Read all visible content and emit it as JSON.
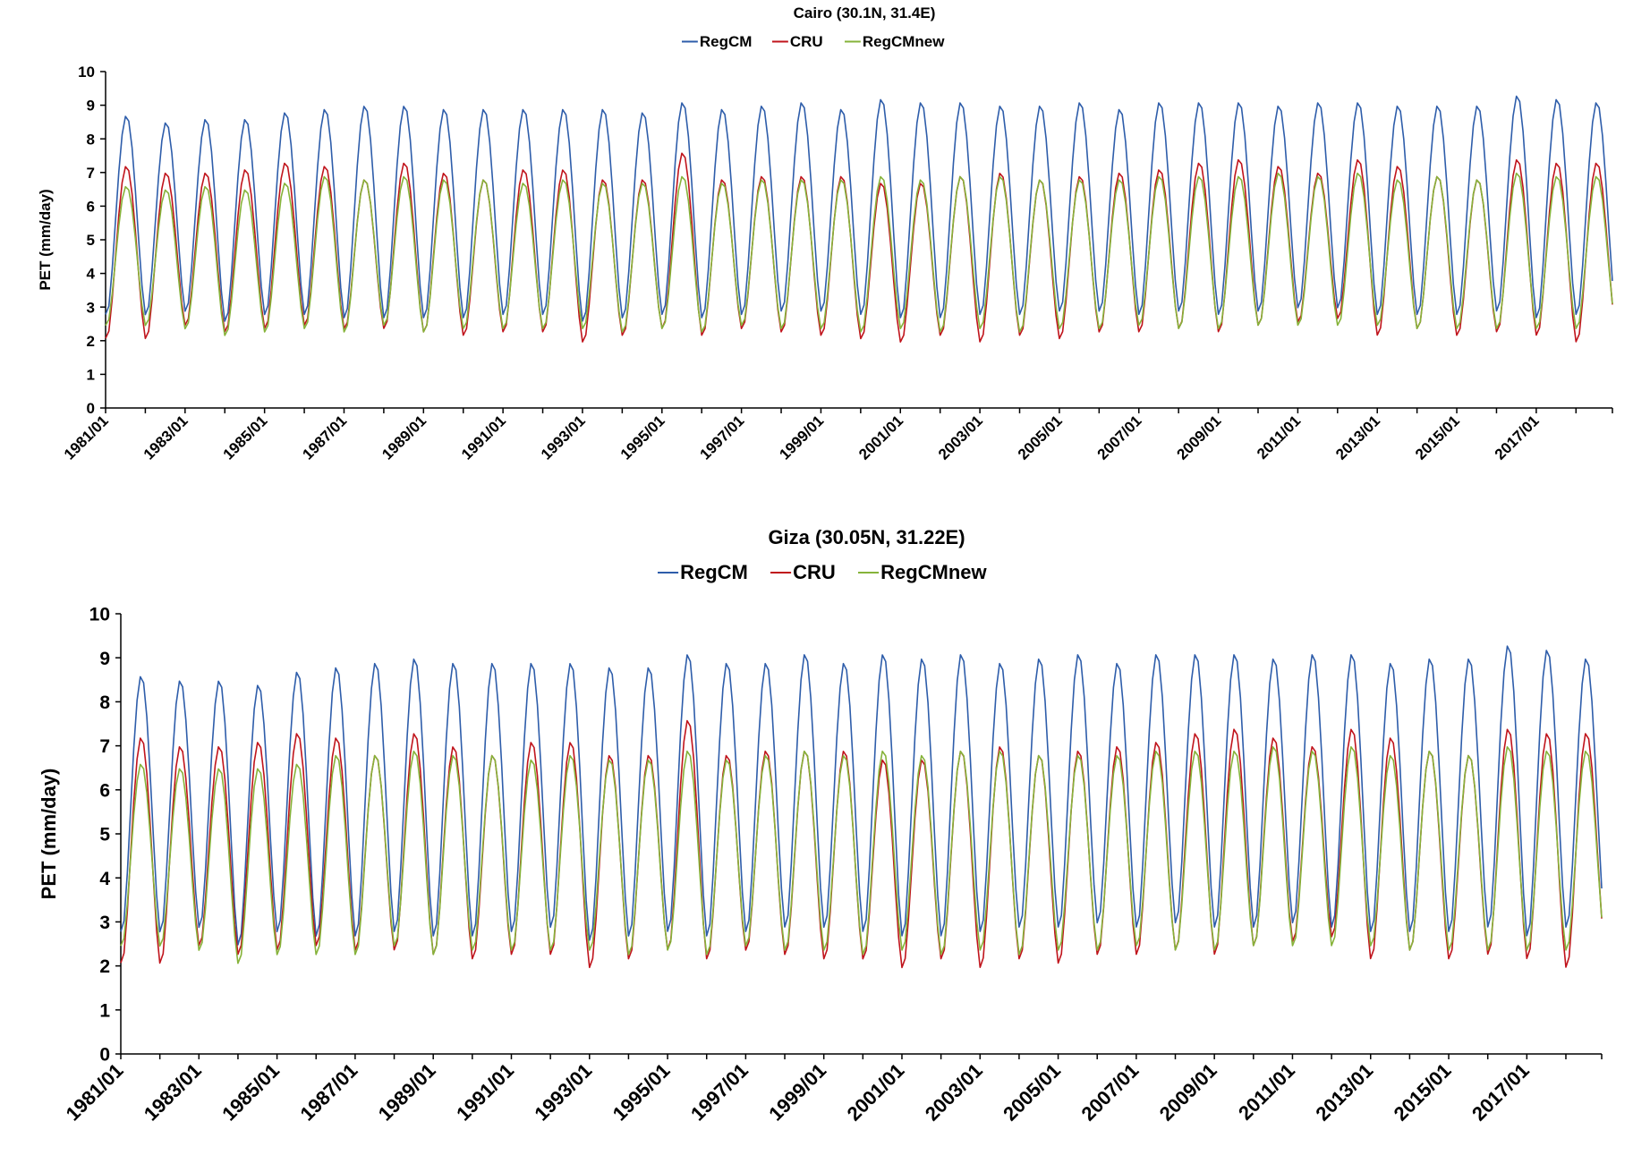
{
  "colors": {
    "RegCM": "#2E5DAA",
    "CRU": "#C0141C",
    "RegCMnew": "#86B33A",
    "axis": "#000000"
  },
  "chart_data": [
    {
      "type": "line",
      "title": "Cairo (30.1N, 31.4E)",
      "xlabel": "",
      "ylabel": "PET (mm/day)",
      "ylim": [
        0,
        10
      ],
      "yticks": [
        0,
        1,
        2,
        3,
        4,
        5,
        6,
        7,
        8,
        9,
        10
      ],
      "xrange": [
        "1981/01",
        "2018/12"
      ],
      "xtick_labels": [
        "1981/01",
        "1983/01",
        "1985/01",
        "1987/01",
        "1989/01",
        "1991/01",
        "1993/01",
        "1995/01",
        "1997/01",
        "1999/01",
        "2001/01",
        "2003/01",
        "2005/01",
        "2007/01",
        "2009/01",
        "2011/01",
        "2013/01",
        "2015/01",
        "2017/01"
      ],
      "legend_position": "top-center",
      "grid": false,
      "frequency": "monthly",
      "years": [
        1981,
        1982,
        1983,
        1984,
        1985,
        1986,
        1987,
        1988,
        1989,
        1990,
        1991,
        1992,
        1993,
        1994,
        1995,
        1996,
        1997,
        1998,
        1999,
        2000,
        2001,
        2002,
        2003,
        2004,
        2005,
        2006,
        2007,
        2008,
        2009,
        2010,
        2011,
        2012,
        2013,
        2014,
        2015,
        2016,
        2017,
        2018
      ],
      "series": [
        {
          "name": "RegCM",
          "annual_max": [
            8.7,
            8.5,
            8.6,
            8.6,
            8.8,
            8.9,
            9.0,
            9.0,
            8.9,
            8.9,
            8.9,
            8.9,
            8.9,
            8.8,
            9.1,
            8.9,
            9.0,
            9.1,
            8.9,
            9.2,
            9.1,
            9.1,
            9.0,
            9.0,
            9.1,
            8.9,
            9.1,
            9.1,
            9.1,
            9.0,
            9.1,
            9.1,
            9.0,
            9.0,
            9.0,
            9.3,
            9.2,
            9.1
          ],
          "annual_min": [
            2.7,
            2.8,
            2.5,
            2.7,
            2.7,
            2.6,
            2.6,
            2.6,
            2.6,
            2.7,
            2.7,
            2.5,
            2.6,
            2.7,
            2.6,
            2.7,
            2.8,
            2.8,
            2.7,
            2.6,
            2.6,
            2.7,
            2.7,
            2.8,
            2.8,
            2.7,
            2.8,
            2.7,
            2.8,
            2.9,
            2.9,
            2.7,
            2.7,
            2.7,
            2.8,
            2.6,
            2.7,
            2.8
          ]
        },
        {
          "name": "CRU",
          "annual_max": [
            7.2,
            7.0,
            7.0,
            7.1,
            7.3,
            7.2,
            6.8,
            7.3,
            7.0,
            6.8,
            7.1,
            7.1,
            6.8,
            6.8,
            7.6,
            6.8,
            6.9,
            6.9,
            6.9,
            6.7,
            6.7,
            6.9,
            7.0,
            6.8,
            6.9,
            7.0,
            7.1,
            7.3,
            7.4,
            7.2,
            7.0,
            7.4,
            7.2,
            6.9,
            6.8,
            7.4,
            7.3,
            7.3
          ],
          "annual_min": [
            2.0,
            2.4,
            2.2,
            2.3,
            2.4,
            2.3,
            2.3,
            2.2,
            2.1,
            2.2,
            2.2,
            1.9,
            2.1,
            2.3,
            2.1,
            2.3,
            2.2,
            2.1,
            2.0,
            1.9,
            2.1,
            1.9,
            2.1,
            2.0,
            2.2,
            2.2,
            2.3,
            2.2,
            2.4,
            2.5,
            2.6,
            2.1,
            2.3,
            2.1,
            2.2,
            2.1,
            1.9,
            2.3
          ]
        },
        {
          "name": "RegCMnew",
          "annual_max": [
            6.6,
            6.5,
            6.6,
            6.5,
            6.7,
            6.9,
            6.8,
            6.9,
            6.8,
            6.8,
            6.7,
            6.8,
            6.7,
            6.7,
            6.9,
            6.7,
            6.8,
            6.8,
            6.8,
            6.9,
            6.8,
            6.9,
            6.9,
            6.8,
            6.8,
            6.8,
            6.9,
            6.9,
            6.9,
            7.0,
            6.9,
            7.0,
            6.8,
            6.9,
            6.8,
            7.0,
            6.9,
            6.9
          ],
          "annual_min": [
            2.4,
            2.3,
            2.1,
            2.2,
            2.3,
            2.2,
            2.4,
            2.2,
            2.3,
            2.3,
            2.3,
            2.3,
            2.2,
            2.3,
            2.2,
            2.4,
            2.3,
            2.3,
            2.2,
            2.3,
            2.2,
            2.3,
            2.2,
            2.3,
            2.3,
            2.4,
            2.3,
            2.3,
            2.4,
            2.4,
            2.4,
            2.4,
            2.3,
            2.3,
            2.3,
            2.3,
            2.3,
            2.4
          ]
        }
      ]
    },
    {
      "type": "line",
      "title": "Giza (30.05N, 31.22E)",
      "xlabel": "",
      "ylabel": "PET (mm/day)",
      "ylim": [
        0,
        10
      ],
      "yticks": [
        0,
        1,
        2,
        3,
        4,
        5,
        6,
        7,
        8,
        9,
        10
      ],
      "xrange": [
        "1981/01",
        "2018/12"
      ],
      "xtick_labels": [
        "1981/01",
        "1983/01",
        "1985/01",
        "1987/01",
        "1989/01",
        "1991/01",
        "1993/01",
        "1995/01",
        "1997/01",
        "1999/01",
        "2001/01",
        "2003/01",
        "2005/01",
        "2007/01",
        "2009/01",
        "2011/01",
        "2013/01",
        "2015/01",
        "2017/01"
      ],
      "legend_position": "top-center",
      "grid": false,
      "frequency": "monthly",
      "years": [
        1981,
        1982,
        1983,
        1984,
        1985,
        1986,
        1987,
        1988,
        1989,
        1990,
        1991,
        1992,
        1993,
        1994,
        1995,
        1996,
        1997,
        1998,
        1999,
        2000,
        2001,
        2002,
        2003,
        2004,
        2005,
        2006,
        2007,
        2008,
        2009,
        2010,
        2011,
        2012,
        2013,
        2014,
        2015,
        2016,
        2017,
        2018
      ],
      "series": [
        {
          "name": "RegCM",
          "annual_max": [
            8.6,
            8.5,
            8.5,
            8.4,
            8.7,
            8.8,
            8.9,
            9.0,
            8.9,
            8.9,
            8.9,
            8.9,
            8.8,
            8.8,
            9.1,
            8.9,
            8.9,
            9.1,
            8.9,
            9.1,
            9.0,
            9.1,
            8.9,
            9.0,
            9.1,
            8.9,
            9.1,
            9.1,
            9.1,
            9.0,
            9.1,
            9.1,
            8.9,
            9.0,
            9.0,
            9.3,
            9.2,
            9.0
          ],
          "annual_min": [
            2.7,
            2.8,
            2.4,
            2.7,
            2.6,
            2.6,
            2.7,
            2.6,
            2.6,
            2.7,
            2.8,
            2.5,
            2.6,
            2.7,
            2.6,
            2.7,
            2.8,
            2.8,
            2.7,
            2.6,
            2.6,
            2.7,
            2.8,
            2.8,
            2.9,
            2.8,
            2.9,
            2.8,
            2.8,
            2.9,
            2.8,
            2.7,
            2.7,
            2.7,
            2.8,
            2.6,
            2.8,
            2.8
          ]
        },
        {
          "name": "CRU",
          "annual_max": [
            7.2,
            7.0,
            7.0,
            7.1,
            7.3,
            7.2,
            6.8,
            7.3,
            7.0,
            6.8,
            7.1,
            7.1,
            6.8,
            6.8,
            7.6,
            6.8,
            6.9,
            6.9,
            6.9,
            6.7,
            6.7,
            6.9,
            7.0,
            6.8,
            6.9,
            7.0,
            7.1,
            7.3,
            7.4,
            7.2,
            7.0,
            7.4,
            7.2,
            6.9,
            6.8,
            7.4,
            7.3,
            7.3
          ],
          "annual_min": [
            2.0,
            2.4,
            2.2,
            2.3,
            2.4,
            2.3,
            2.3,
            2.2,
            2.1,
            2.2,
            2.2,
            1.9,
            2.1,
            2.3,
            2.1,
            2.3,
            2.2,
            2.1,
            2.1,
            1.9,
            2.1,
            1.9,
            2.1,
            2.0,
            2.2,
            2.2,
            2.3,
            2.2,
            2.4,
            2.5,
            2.6,
            2.1,
            2.3,
            2.1,
            2.2,
            2.1,
            1.9,
            2.3
          ]
        },
        {
          "name": "RegCMnew",
          "annual_max": [
            6.6,
            6.5,
            6.5,
            6.5,
            6.6,
            6.8,
            6.8,
            6.9,
            6.8,
            6.8,
            6.7,
            6.8,
            6.7,
            6.7,
            6.9,
            6.7,
            6.8,
            6.9,
            6.8,
            6.9,
            6.8,
            6.9,
            6.9,
            6.8,
            6.8,
            6.8,
            6.9,
            6.9,
            6.9,
            7.0,
            6.9,
            7.0,
            6.8,
            6.9,
            6.8,
            7.0,
            6.9,
            6.9
          ],
          "annual_min": [
            2.4,
            2.3,
            2.0,
            2.2,
            2.2,
            2.2,
            2.4,
            2.2,
            2.3,
            2.3,
            2.3,
            2.3,
            2.2,
            2.3,
            2.2,
            2.4,
            2.3,
            2.3,
            2.2,
            2.3,
            2.2,
            2.3,
            2.2,
            2.3,
            2.3,
            2.4,
            2.3,
            2.3,
            2.4,
            2.4,
            2.4,
            2.4,
            2.3,
            2.3,
            2.3,
            2.3,
            2.3,
            2.4
          ]
        }
      ]
    }
  ]
}
